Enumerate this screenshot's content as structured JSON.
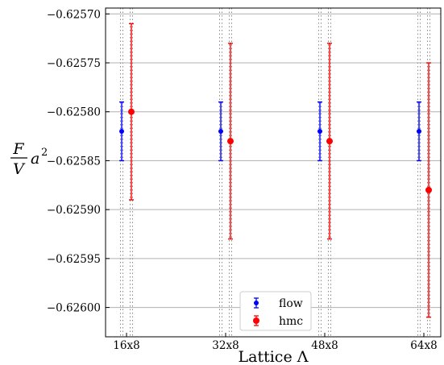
{
  "chart_data": {
    "type": "scatter",
    "categories": [
      "16x8",
      "32x8",
      "48x8",
      "64x8"
    ],
    "xlabel": "Lattice Λ",
    "ylabel": {
      "numerator": "F",
      "denominator": "V",
      "factor": "a",
      "exponent": "2"
    },
    "ylim": [
      -0.62603,
      -0.625694
    ],
    "yticks": [
      -0.6257,
      -0.62575,
      -0.6258,
      -0.62585,
      -0.6259,
      -0.62595,
      -0.626
    ],
    "ytick_labels": [
      "−0.62570",
      "−0.62575",
      "−0.62580",
      "−0.62585",
      "−0.62590",
      "−0.62595",
      "−0.62600"
    ],
    "grid": "horizontal",
    "legend_position": "bottom-center",
    "series": [
      {
        "name": "flow",
        "color": "#0000ff",
        "values": [
          -0.62582,
          -0.62582,
          -0.62582,
          -0.62582
        ],
        "errors": [
          3e-05,
          3e-05,
          3e-05,
          3e-05
        ]
      },
      {
        "name": "hmc",
        "color": "#ff0000",
        "values": [
          -0.6258,
          -0.62583,
          -0.62583,
          -0.62588
        ],
        "errors": [
          9e-05,
          0.0001,
          0.0001,
          0.00013
        ]
      }
    ]
  }
}
